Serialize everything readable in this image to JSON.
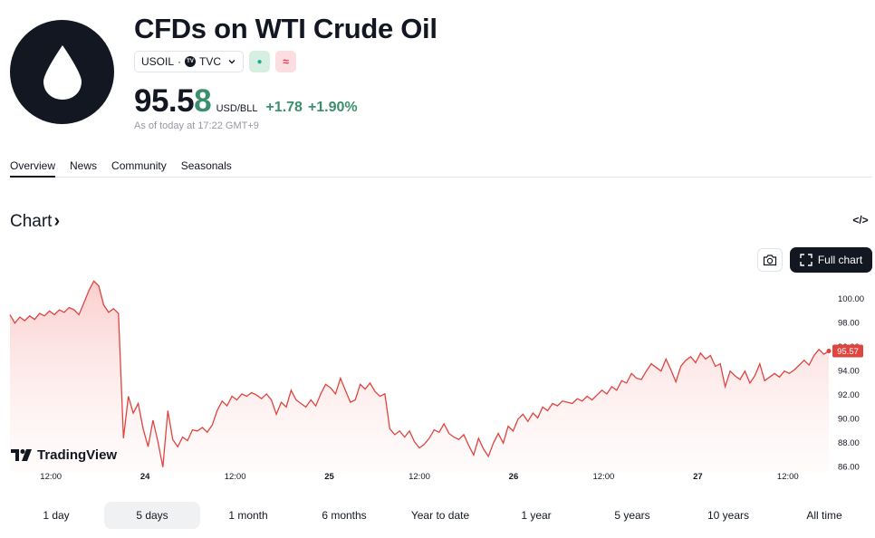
{
  "symbol": {
    "title": "CFDs on WTI Crude Oil",
    "ticker": "USOIL",
    "separator": "·",
    "exchange": "TVC",
    "exchange_badge": "TV",
    "market_open_icon": "●",
    "flag_icon": "≈",
    "icon": "oil-drop-icon"
  },
  "quote": {
    "price_main": "95.5",
    "price_last_digit": "8",
    "unit": "USD/BLL",
    "change_abs": "+1.78",
    "change_pct": "+1.90%",
    "as_of": "As of today at 17:22 GMT+9",
    "positive_color": "#3c8f6e"
  },
  "tabs": [
    {
      "label": "Overview",
      "active": true
    },
    {
      "label": "News",
      "active": false
    },
    {
      "label": "Community",
      "active": false
    },
    {
      "label": "Seasonals",
      "active": false
    }
  ],
  "chart_section": {
    "heading": "Chart",
    "heading_arrow": "›",
    "embed_label": "</>",
    "full_chart_label": "Full chart",
    "watermark": "TradingView"
  },
  "chart_data": {
    "type": "area",
    "line_color": "#e0443f",
    "ylim": [
      85.5,
      101.8
    ],
    "y_ticks": [
      "100.00",
      "98.00",
      "96.00",
      "94.00",
      "92.00",
      "90.00",
      "88.00",
      "86.00"
    ],
    "x_ticks": [
      {
        "label": "12:00",
        "bold": false,
        "t": 0.05
      },
      {
        "label": "24",
        "bold": true,
        "t": 0.165
      },
      {
        "label": "12:00",
        "bold": false,
        "t": 0.275
      },
      {
        "label": "25",
        "bold": true,
        "t": 0.39
      },
      {
        "label": "12:00",
        "bold": false,
        "t": 0.5
      },
      {
        "label": "26",
        "bold": true,
        "t": 0.615
      },
      {
        "label": "12:00",
        "bold": false,
        "t": 0.725
      },
      {
        "label": "27",
        "bold": true,
        "t": 0.84
      },
      {
        "label": "12:00",
        "bold": false,
        "t": 0.95
      }
    ],
    "last_value_label": "95.57",
    "series": [
      {
        "values": [
          98.6,
          97.9,
          98.4,
          98.1,
          98.5,
          98.2,
          98.7,
          98.5,
          98.9,
          98.6,
          99.0,
          98.8,
          99.2,
          99.0,
          98.6,
          99.6,
          100.6,
          101.4,
          101.0,
          99.4,
          98.8,
          99.1,
          98.7,
          88.3,
          91.8,
          90.4,
          91.2,
          89.1,
          87.6,
          89.8,
          88.0,
          85.9,
          90.6,
          88.2,
          87.6,
          88.4,
          88.1,
          89.0,
          88.9,
          89.2,
          88.8,
          89.4,
          90.6,
          91.4,
          91.0,
          91.8,
          91.5,
          92.0,
          91.8,
          92.1,
          91.9,
          91.6,
          92.0,
          91.5,
          90.3,
          91.3,
          90.9,
          92.3,
          91.5,
          91.2,
          90.9,
          91.5,
          91.0,
          92.0,
          92.8,
          92.5,
          92.0,
          93.3,
          92.3,
          91.3,
          91.5,
          92.8,
          92.4,
          92.9,
          92.2,
          91.8,
          92.0,
          89.1,
          88.6,
          88.9,
          88.4,
          88.9,
          88.0,
          87.5,
          87.8,
          88.3,
          89.0,
          88.8,
          89.5,
          88.7,
          88.4,
          88.2,
          88.6,
          87.7,
          86.9,
          88.3,
          87.4,
          86.8,
          87.9,
          88.7,
          87.9,
          89.3,
          88.9,
          89.9,
          90.3,
          89.7,
          90.4,
          90.0,
          90.9,
          90.6,
          91.2,
          91.0,
          91.4,
          91.3,
          91.2,
          91.6,
          91.4,
          91.8,
          91.5,
          91.9,
          92.3,
          92.0,
          92.6,
          92.3,
          93.1,
          92.9,
          93.7,
          93.3,
          93.2,
          93.9,
          94.5,
          94.2,
          93.9,
          94.9,
          94.0,
          93.0,
          94.3,
          94.8,
          95.1,
          94.6,
          95.4,
          94.9,
          95.2,
          94.3,
          94.5,
          92.6,
          93.9,
          93.5,
          93.2,
          93.9,
          92.9,
          93.5,
          94.5,
          93.1,
          93.4,
          93.7,
          93.4,
          93.9,
          93.7,
          94.0,
          94.4,
          94.8,
          94.4,
          95.2,
          95.7,
          95.3,
          95.57
        ]
      }
    ]
  },
  "ranges": [
    {
      "label": "1 day",
      "active": false
    },
    {
      "label": "5 days",
      "active": true
    },
    {
      "label": "1 month",
      "active": false
    },
    {
      "label": "6 months",
      "active": false
    },
    {
      "label": "Year to date",
      "active": false
    },
    {
      "label": "1 year",
      "active": false
    },
    {
      "label": "5 years",
      "active": false
    },
    {
      "label": "10 years",
      "active": false
    },
    {
      "label": "All time",
      "active": false
    }
  ]
}
